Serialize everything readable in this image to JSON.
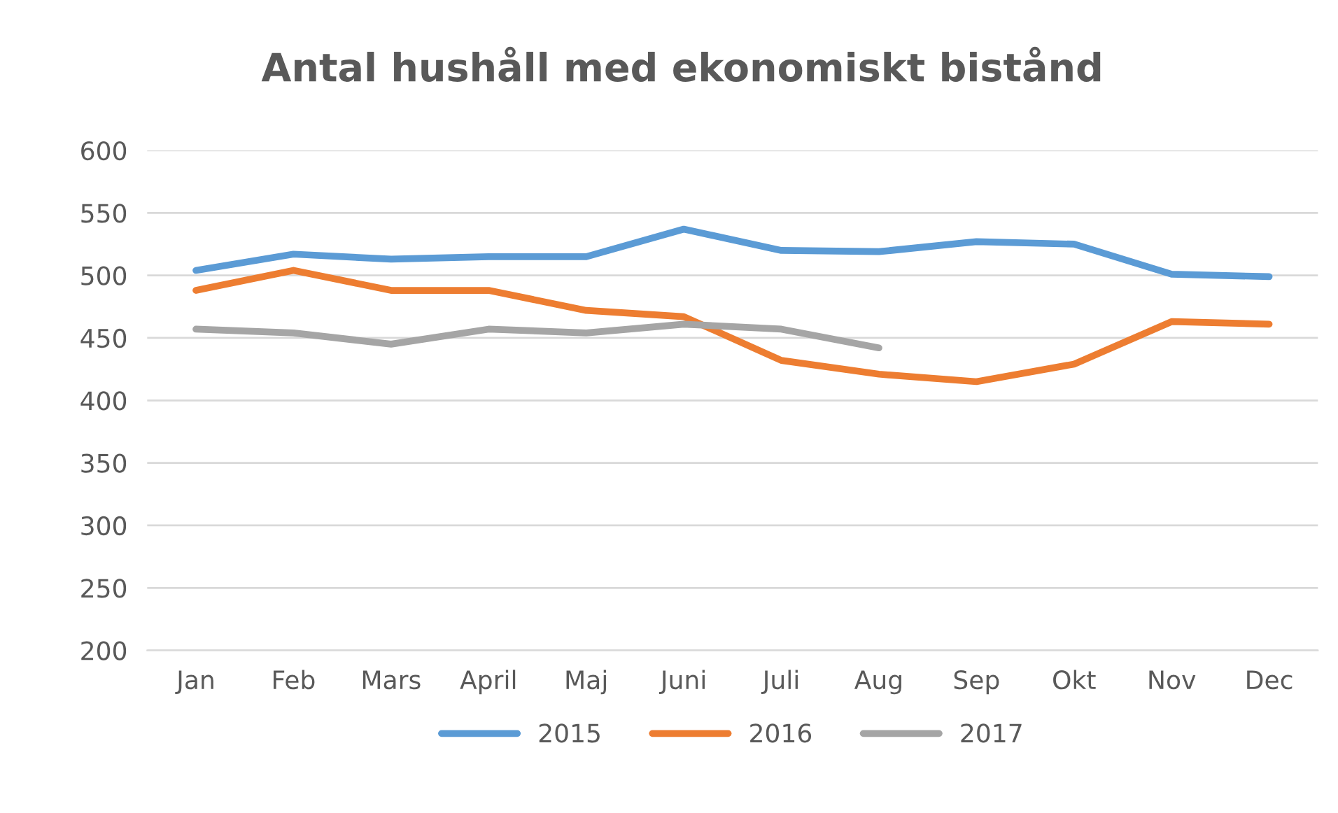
{
  "chart_data": {
    "type": "line",
    "title": "Antal hushåll med ekonomiskt bistånd",
    "categories": [
      "Jan",
      "Feb",
      "Mars",
      "April",
      "Maj",
      "Juni",
      "Juli",
      "Aug",
      "Sep",
      "Okt",
      "Nov",
      "Dec"
    ],
    "series": [
      {
        "name": "2015",
        "color": "#5b9bd5",
        "values": [
          504,
          517,
          513,
          515,
          515,
          537,
          520,
          519,
          527,
          525,
          501,
          499
        ]
      },
      {
        "name": "2016",
        "color": "#ed7d31",
        "values": [
          488,
          504,
          488,
          488,
          472,
          467,
          432,
          421,
          415,
          429,
          463,
          461
        ]
      },
      {
        "name": "2017",
        "color": "#a5a5a5",
        "values": [
          457,
          454,
          445,
          457,
          454,
          461,
          457,
          442,
          null,
          null,
          null,
          null
        ]
      }
    ],
    "ylim": [
      200,
      600
    ],
    "yticks": [
      200,
      250,
      300,
      350,
      400,
      450,
      500,
      550,
      600
    ],
    "grid": "y",
    "legend": "bottom",
    "marker": "none",
    "line_style": "solid"
  }
}
